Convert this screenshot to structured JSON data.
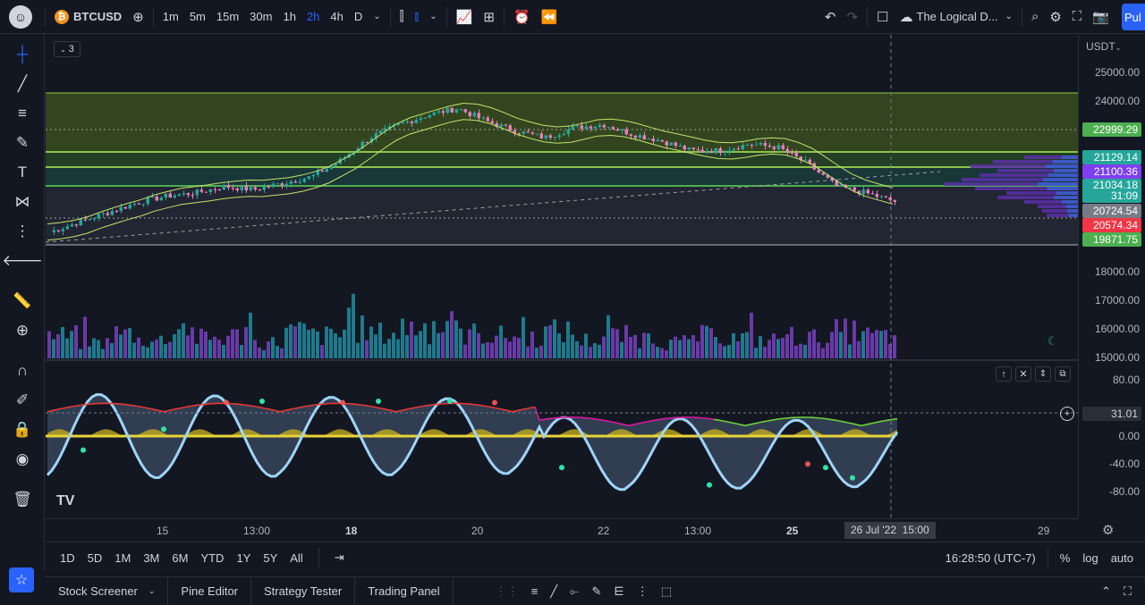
{
  "topbar": {
    "symbol": "BTCUSD",
    "intervals": [
      "1m",
      "5m",
      "15m",
      "30m",
      "1h",
      "2h",
      "4h",
      "D"
    ],
    "active_interval": "2h",
    "layout_name": "The Logical D...",
    "publish_label": "Pul"
  },
  "legend": {
    "collapsed_count": "3"
  },
  "price_axis": {
    "currency": "USDT",
    "labels": [
      "25000.00",
      "24000.00",
      "18000.00",
      "17000.00",
      "16000.00",
      "15000.00"
    ],
    "badges": [
      {
        "value": "22999.29",
        "color": "#4caf50"
      },
      {
        "value": "21129.14",
        "color": "#26a69a"
      },
      {
        "value": "21100.36",
        "color": "#7e3ff2"
      },
      {
        "value": "21034.18",
        "color": "#26a69a"
      },
      {
        "value": "31:09",
        "color": "#26a69a"
      },
      {
        "value": "20724.54",
        "color": "#787b86"
      },
      {
        "value": "20574.34",
        "color": "#f23645"
      },
      {
        "value": "19871.75",
        "color": "#4caf50"
      }
    ],
    "osc_labels": [
      "80.00",
      "40.00",
      "0.00",
      "-40.00",
      "-80.00"
    ],
    "osc_current": "31.01"
  },
  "time_axis": {
    "labels": [
      {
        "text": "15",
        "bold": false
      },
      {
        "text": "13:00",
        "bold": false
      },
      {
        "text": "18",
        "bold": true
      },
      {
        "text": "20",
        "bold": false
      },
      {
        "text": "22",
        "bold": false
      },
      {
        "text": "13:00",
        "bold": false
      },
      {
        "text": "25",
        "bold": true
      },
      {
        "text": "29",
        "bold": false
      }
    ],
    "crosshair_date": "26 Jul '22",
    "crosshair_time": "15:00"
  },
  "range_bar": {
    "ranges": [
      "1D",
      "5D",
      "1M",
      "3M",
      "6M",
      "YTD",
      "1Y",
      "5Y",
      "All"
    ],
    "clock": "16:28:50 (UTC-7)",
    "percent": "%",
    "log": "log",
    "auto": "auto"
  },
  "panels": [
    "Stock Screener",
    "Pine Editor",
    "Strategy Tester",
    "Trading Panel"
  ],
  "colors": {
    "up": "#26a69a",
    "down": "#ef5350",
    "volume_up": "#1e7a8c",
    "volume_down": "#6a3aa8",
    "zone": "#4c6b1e"
  },
  "chart_data": {
    "type": "candlestick",
    "ylim": [
      15000,
      25500
    ],
    "x_ticks": [
      "15",
      "13:00",
      "18",
      "20",
      "22",
      "13:00",
      "25",
      "26 Jul '22",
      "29"
    ],
    "price_path": [
      20100,
      20400,
      20700,
      21000,
      21200,
      21300,
      21500,
      21400,
      21600,
      21800,
      22300,
      23000,
      23400,
      23700,
      23900,
      23500,
      23200,
      23000,
      23300,
      23400,
      23100,
      22900,
      22600,
      22600,
      22800,
      22700,
      22200,
      21500,
      21300,
      21034
    ],
    "volume_path": [
      0.5,
      0.35,
      0.55,
      0.4,
      0.6,
      0.45,
      0.5,
      0.35,
      0.6,
      0.5,
      0.65,
      0.55,
      0.7,
      0.6,
      0.55,
      0.5,
      0.45,
      0.6,
      0.4,
      0.5,
      0.45,
      0.35,
      0.5,
      0.45,
      0.4,
      0.5,
      0.45,
      0.6,
      0.5,
      0.4
    ],
    "oscillator": {
      "ylim": [
        -100,
        100
      ],
      "ticks": [
        80,
        40,
        0,
        -40,
        -80
      ],
      "current": 31.01
    }
  }
}
